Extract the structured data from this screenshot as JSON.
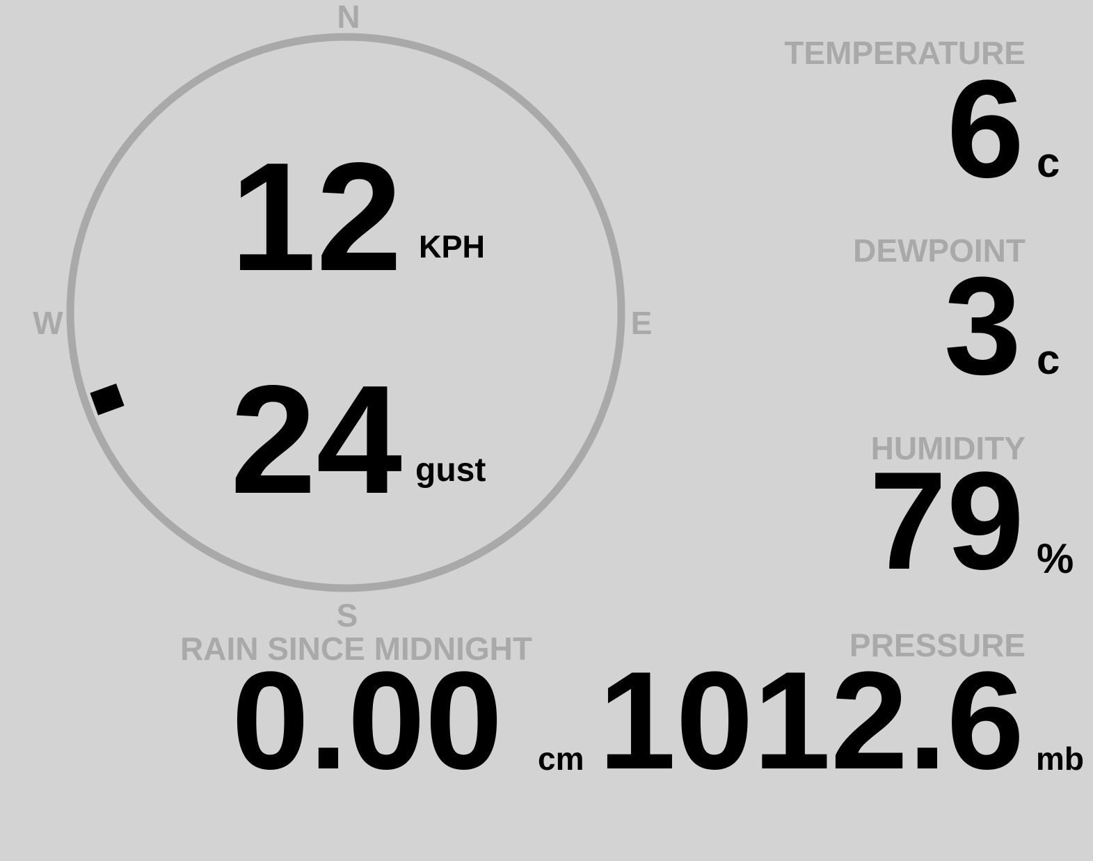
{
  "wind": {
    "speed": "12",
    "speed_unit": "KPH",
    "gust": "24",
    "gust_unit": "gust",
    "direction_degrees": 250,
    "compass": {
      "n": "N",
      "e": "E",
      "s": "S",
      "w": "W"
    }
  },
  "temperature": {
    "label": "TEMPERATURE",
    "value": "6",
    "unit": "c"
  },
  "dewpoint": {
    "label": "DEWPOINT",
    "value": "3",
    "unit": "c"
  },
  "humidity": {
    "label": "HUMIDITY",
    "value": "79",
    "unit": "%"
  },
  "pressure": {
    "label": "PRESSURE",
    "value": "1012.6",
    "unit": "mb"
  },
  "rain": {
    "label": "RAIN SINCE MIDNIGHT",
    "value": "0.00",
    "unit": "cm"
  },
  "colors": {
    "background": "#d3d3d3",
    "muted": "#a9a9a9",
    "value": "#000000"
  }
}
